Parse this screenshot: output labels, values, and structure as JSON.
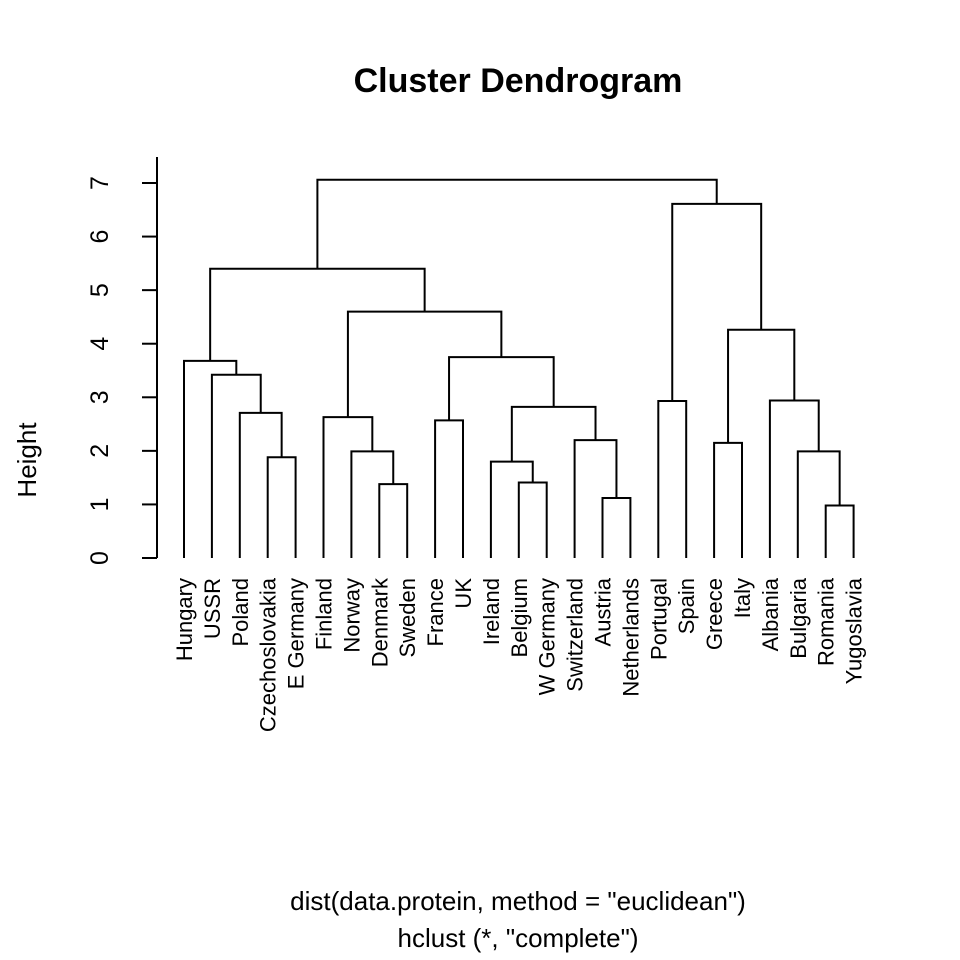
{
  "chart_data": {
    "type": "dendrogram",
    "title": "Cluster Dendrogram",
    "ylabel": "Height",
    "xlabel_lines": [
      "dist(data.protein, method = \"euclidean\")",
      "hclust (*, \"complete\")"
    ],
    "ylim": [
      0,
      7
    ],
    "yticks": [
      0,
      1,
      2,
      3,
      4,
      5,
      6,
      7
    ],
    "leaves": [
      "Hungary",
      "USSR",
      "Poland",
      "Czechoslovakia",
      "E Germany",
      "Finland",
      "Norway",
      "Denmark",
      "Sweden",
      "France",
      "UK",
      "Ireland",
      "Belgium",
      "W Germany",
      "Switzerland",
      "Austria",
      "Netherlands",
      "Portugal",
      "Spain",
      "Greece",
      "Italy",
      "Albania",
      "Bulgaria",
      "Romania",
      "Yugoslavia"
    ],
    "merges": [
      {
        "left": "Romania",
        "right": "Yugoslavia",
        "height": 0.98
      },
      {
        "left": "Austria",
        "right": "Netherlands",
        "height": 1.12
      },
      {
        "left": "Denmark",
        "right": "Sweden",
        "height": 1.38
      },
      {
        "left": "Belgium",
        "right": "W Germany",
        "height": 1.41
      },
      {
        "left": "Ireland",
        "right": "Belgium | W Germany",
        "height": 1.8
      },
      {
        "left": "Czechoslovakia",
        "right": "E Germany",
        "height": 1.88
      },
      {
        "left": "Norway",
        "right": "Denmark | Sweden",
        "height": 1.99
      },
      {
        "left": "Bulgaria",
        "right": "Romania | Yugoslavia",
        "height": 1.99
      },
      {
        "left": "Greece",
        "right": "Italy",
        "height": 2.15
      },
      {
        "left": "Switzerland",
        "right": "Austria | Netherlands",
        "height": 2.2
      },
      {
        "left": "France",
        "right": "UK",
        "height": 2.57
      },
      {
        "left": "Finland",
        "right": "Norway | Denmark | Sweden",
        "height": 2.63
      },
      {
        "left": "Poland",
        "right": "Czechoslovakia | E Germany",
        "height": 2.71
      },
      {
        "left": "Ireland | Belgium | W Germany",
        "right": "Switzerland | Austria | Netherlands",
        "height": 2.82
      },
      {
        "left": "Portugal",
        "right": "Spain",
        "height": 2.93
      },
      {
        "left": "Albania",
        "right": "Bulgaria | Romania | Yugoslavia",
        "height": 2.94
      },
      {
        "left": "USSR",
        "right": "Poland | Czechoslovakia | E Germany",
        "height": 3.42
      },
      {
        "left": "Hungary",
        "right": "USSR | Poland | Czechoslovakia | E Germany",
        "height": 3.68
      },
      {
        "left": "France | UK",
        "right": "Ireland | Belgium | W Germany | Switzerland | Austria | Netherlands",
        "height": 3.75
      },
      {
        "left": "Greece | Italy",
        "right": "Albania | Bulgaria | Romania | Yugoslavia",
        "height": 4.26
      },
      {
        "left": "Finland | Norway | Denmark | Sweden",
        "right": "France | UK | Ireland | Belgium | W Germany | Switzerland | Austria | Netherlands",
        "height": 4.6
      },
      {
        "left": "Hungary | USSR | Poland | Czechoslovakia | E Germany",
        "right": "Finland | Norway | Denmark | Sweden | France | UK | Ireland | Belgium | W Germany | Switzerland | Austria | Netherlands",
        "height": 5.4
      },
      {
        "left": "Portugal | Spain",
        "right": "Greece | Italy | Albania | Bulgaria | Romania | Yugoslavia",
        "height": 6.61
      },
      {
        "left": "Hungary | USSR | Poland | Czechoslovakia | E Germany | Finland | Norway | Denmark | Sweden | France | UK | Ireland | Belgium | W Germany | Switzerland | Austria | Netherlands",
        "right": "Portugal | Spain | Greece | Italy | Albania | Bulgaria | Romania | Yugoslavia",
        "height": 7.06
      }
    ],
    "grid": false,
    "legend": "none"
  }
}
